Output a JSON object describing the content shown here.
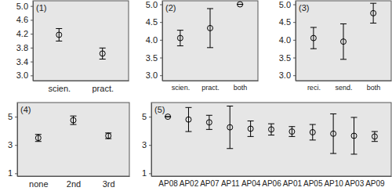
{
  "chart_data": [
    {
      "type": "errorbar",
      "title": "(1)",
      "color": "#000000",
      "categories": [
        "scien.",
        "pract."
      ],
      "values": [
        4.17,
        3.63
      ],
      "errors": [
        0.18,
        0.16
      ],
      "ylim": [
        2.85,
        5.15
      ],
      "yticks": [
        {
          "value": 3,
          "label": "3.0"
        },
        3.4,
        3.8,
        4.2,
        4.6,
        {
          "value": 5,
          "label": "5.0"
        }
      ]
    },
    {
      "type": "errorbar",
      "title": "(2)",
      "color": "#000000",
      "categories": [
        "scien.",
        "pract.",
        "both"
      ],
      "values": [
        4.05,
        4.33,
        5.0
      ],
      "errors": [
        0.22,
        0.55,
        0
      ],
      "ylim": [
        2.85,
        5.1
      ],
      "yticks": [
        {
          "value": 3,
          "label": "3.0"
        },
        3.5,
        {
          "value": 4,
          "label": "4.0"
        },
        4.5,
        {
          "value": 5,
          "label": "5.0"
        }
      ]
    },
    {
      "type": "errorbar",
      "title": "(3)",
      "color": "#000000",
      "categories": [
        "reci.",
        "send.",
        "both"
      ],
      "values": [
        4.05,
        3.95,
        4.75
      ],
      "errors": [
        0.3,
        0.5,
        0.28
      ],
      "ylim": [
        2.85,
        5.1
      ],
      "yticks": [
        {
          "value": 3,
          "label": "3.0"
        },
        3.5,
        {
          "value": 4,
          "label": "4.0"
        },
        4.5,
        {
          "value": 5,
          "label": "5.0"
        }
      ]
    },
    {
      "type": "errorbar",
      "title": "(4)",
      "color": "#000000",
      "categories": [
        "none",
        "2nd",
        "3rd"
      ],
      "values": [
        3.5,
        4.75,
        3.65
      ],
      "errors": [
        0.25,
        0.3,
        0.2
      ],
      "ylim": [
        0.8,
        6.0
      ],
      "yticks": [
        1,
        3,
        5
      ]
    },
    {
      "type": "errorbar",
      "color": "#000000",
      "title": "(5)",
      "categories": [
        "AP08",
        "AP02",
        "AP07",
        "AP11",
        "AP04",
        "AP06",
        "AP01",
        "AP05",
        "AP10",
        "AP03",
        "AP09"
      ],
      "values": [
        5.0,
        4.8,
        4.6,
        4.25,
        4.15,
        4.1,
        3.95,
        3.9,
        3.8,
        3.65,
        3.6
      ],
      "errors": [
        0,
        0.85,
        0.5,
        1.5,
        0.55,
        0.4,
        0.35,
        0.55,
        1.4,
        1.3,
        0.35
      ],
      "ylim": [
        0.8,
        6.0
      ],
      "yticks": [
        1,
        3,
        5
      ]
    }
  ]
}
